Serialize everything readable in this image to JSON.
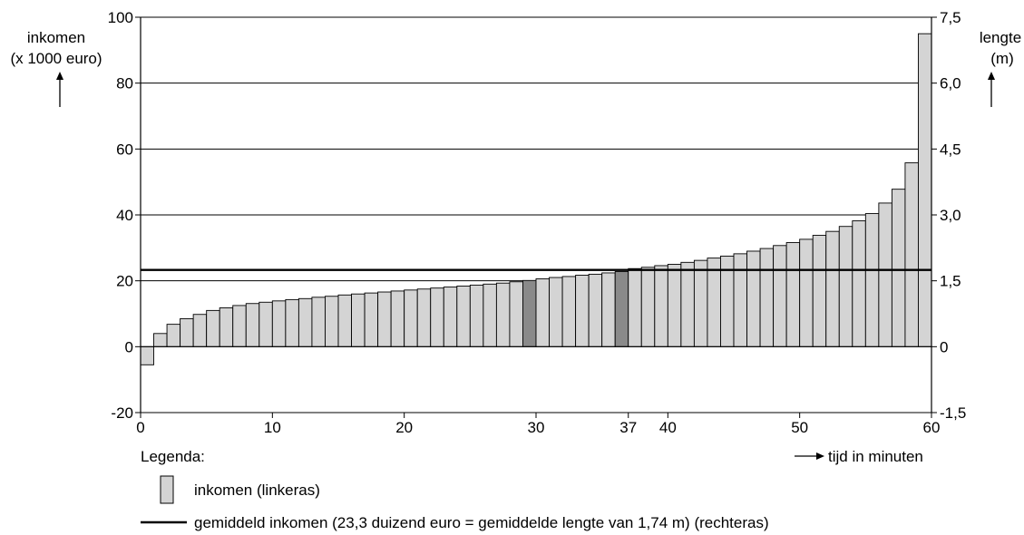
{
  "chart_data": {
    "type": "bar",
    "left_axis": {
      "label_line1": "inkomen",
      "label_line2": "(x 1000 euro)",
      "ylim": [
        -20,
        100
      ],
      "ticks": [
        "-20",
        "0",
        "20",
        "40",
        "60",
        "80",
        "100"
      ]
    },
    "right_axis": {
      "label_line1": "lengte",
      "label_line2": "(m)",
      "ylim": [
        -1.5,
        7.5
      ],
      "ticks": [
        "-1,5",
        "0",
        "1,5",
        "3,0",
        "4,5",
        "6,0",
        "7,5"
      ]
    },
    "x_axis": {
      "label": "tijd in minuten",
      "xlim": [
        0,
        60
      ],
      "ticks": [
        {
          "value": 0,
          "label": "0"
        },
        {
          "value": 10,
          "label": "10"
        },
        {
          "value": 20,
          "label": "20"
        },
        {
          "value": 30,
          "label": "30"
        },
        {
          "value": 37,
          "label": "37"
        },
        {
          "value": 40,
          "label": "40"
        },
        {
          "value": 50,
          "label": "50"
        },
        {
          "value": 60,
          "label": "60"
        }
      ]
    },
    "grid": true,
    "gridlines_y": [
      20,
      40,
      60,
      80
    ],
    "values": [
      -5.5,
      4.0,
      6.8,
      8.5,
      9.8,
      11.0,
      11.8,
      12.5,
      13.1,
      13.5,
      13.9,
      14.3,
      14.6,
      15.0,
      15.3,
      15.7,
      16.0,
      16.3,
      16.6,
      16.9,
      17.2,
      17.5,
      17.8,
      18.1,
      18.4,
      18.7,
      19.0,
      19.3,
      19.7,
      20.1,
      20.6,
      21.0,
      21.3,
      21.7,
      22.0,
      22.4,
      22.8,
      23.7,
      24.1,
      24.6,
      25.0,
      25.6,
      26.2,
      26.9,
      27.5,
      28.2,
      29.0,
      29.8,
      30.7,
      31.6,
      32.6,
      33.8,
      35.0,
      36.5,
      38.2,
      40.4,
      43.6,
      47.8,
      55.8,
      95.0
    ],
    "highlight_indices": [
      29,
      36
    ],
    "average": {
      "value": 23.3
    },
    "colors": {
      "bar": "#d4d4d4",
      "highlight": "#8a8a8a",
      "stroke": "#000000"
    },
    "legend": {
      "title": "Legenda:",
      "bar_label": "inkomen (linkeras)",
      "line_label": "gemiddeld inkomen (23,3 duizend euro = gemiddelde lengte van 1,74 m) (rechteras)"
    }
  }
}
